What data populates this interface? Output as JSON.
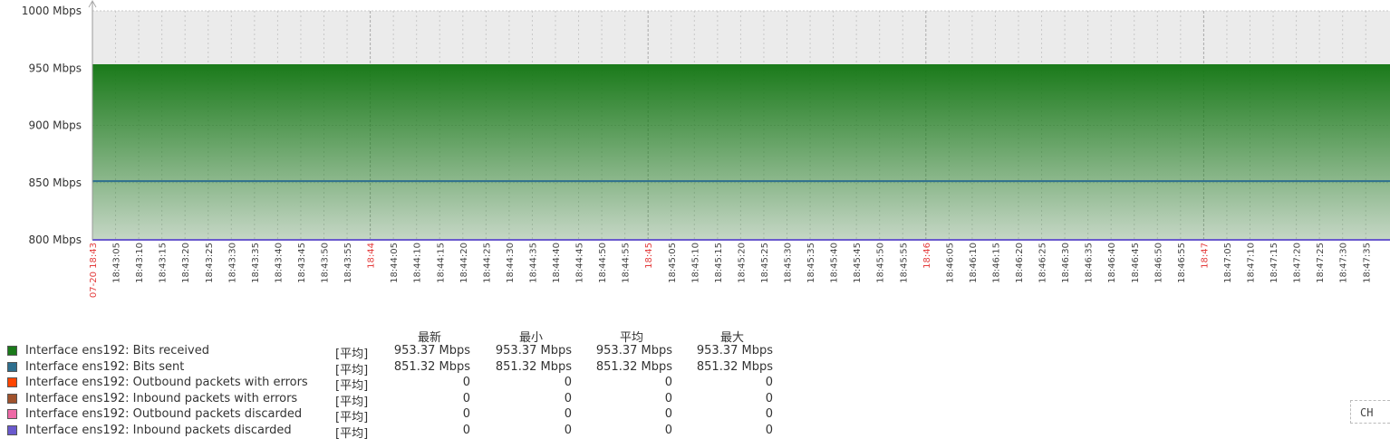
{
  "chart_data": {
    "type": "area",
    "y_axis": {
      "min": 800,
      "max": 1000,
      "unit": "Mbps",
      "ticks": [
        "800 Mbps",
        "850 Mbps",
        "900 Mbps",
        "950 Mbps",
        "1000 Mbps"
      ]
    },
    "x_ticks": [
      "07-20 18:43",
      "18:43:05",
      "18:43:10",
      "18:43:15",
      "18:43:20",
      "18:43:25",
      "18:43:30",
      "18:43:35",
      "18:43:40",
      "18:43:45",
      "18:43:50",
      "18:43:55",
      "18:44",
      "18:44:05",
      "18:44:10",
      "18:44:15",
      "18:44:20",
      "18:44:25",
      "18:44:30",
      "18:44:35",
      "18:44:40",
      "18:44:45",
      "18:44:50",
      "18:44:55",
      "18:45",
      "18:45:05",
      "18:45:10",
      "18:45:15",
      "18:45:20",
      "18:45:25",
      "18:45:30",
      "18:45:35",
      "18:45:40",
      "18:45:45",
      "18:45:50",
      "18:45:55",
      "18:46",
      "18:46:05",
      "18:46:10",
      "18:46:15",
      "18:46:20",
      "18:46:25",
      "18:46:30",
      "18:46:35",
      "18:46:40",
      "18:46:45",
      "18:46:50",
      "18:46:55",
      "18:47",
      "18:47:05",
      "18:47:10",
      "18:47:15",
      "18:47:20",
      "18:47:25",
      "18:47:30",
      "18:47:35"
    ],
    "major_ticks": [
      "07-20 18:43",
      "18:44",
      "18:45",
      "18:46",
      "18:47"
    ],
    "series": [
      {
        "name": "Interface ens192: Bits received",
        "color": "#1a7a1a",
        "draw": "gradient-area",
        "value": 953.37
      },
      {
        "name": "Interface ens192: Bits sent",
        "color": "#2e6f8e",
        "draw": "line",
        "value": 851.32
      },
      {
        "name": "Interface ens192: Outbound packets with errors",
        "color": "#ff4500",
        "value": 0
      },
      {
        "name": "Interface ens192: Inbound packets with errors",
        "color": "#a0522d",
        "value": 0
      },
      {
        "name": "Interface ens192: Outbound packets discarded",
        "color": "#ee6aa7",
        "value": 0
      },
      {
        "name": "Interface ens192: Inbound packets discarded",
        "color": "#6a5acd",
        "value": 0
      }
    ]
  },
  "legend": {
    "headers": [
      "最新",
      "最小",
      "平均",
      "最大"
    ],
    "rows": [
      {
        "name": "Interface ens192: Bits received",
        "color": "#1a7a1a",
        "func": "[平均]",
        "values": [
          "953.37 Mbps",
          "953.37 Mbps",
          "953.37 Mbps",
          "953.37 Mbps"
        ]
      },
      {
        "name": "Interface ens192: Bits sent",
        "color": "#2e6f8e",
        "func": "[平均]",
        "values": [
          "851.32 Mbps",
          "851.32 Mbps",
          "851.32 Mbps",
          "851.32 Mbps"
        ]
      },
      {
        "name": "Interface ens192: Outbound packets with errors",
        "color": "#ff4500",
        "func": "[平均]",
        "values": [
          "0",
          "0",
          "0",
          "0"
        ]
      },
      {
        "name": "Interface ens192: Inbound packets with errors",
        "color": "#a0522d",
        "func": "[平均]",
        "values": [
          "0",
          "0",
          "0",
          "0"
        ]
      },
      {
        "name": "Interface ens192: Outbound packets discarded",
        "color": "#ee6aa7",
        "func": "[平均]",
        "values": [
          "0",
          "0",
          "0",
          "0"
        ]
      },
      {
        "name": "Interface ens192: Inbound packets discarded",
        "color": "#6a5acd",
        "func": "[平均]",
        "values": [
          "0",
          "0",
          "0",
          "0"
        ]
      }
    ]
  },
  "ime": {
    "label": "CH"
  }
}
